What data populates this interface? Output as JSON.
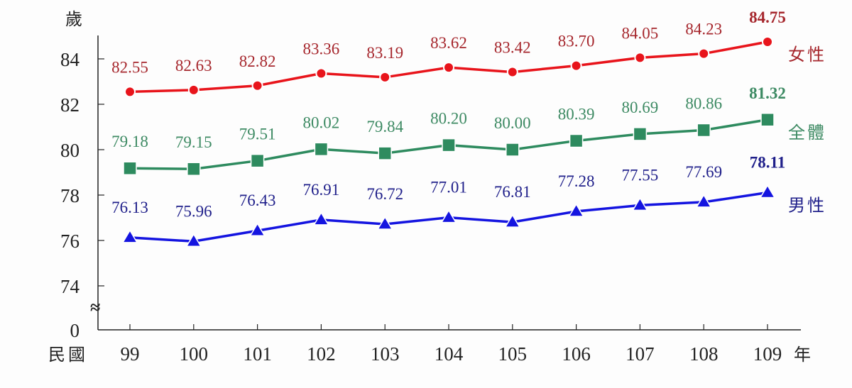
{
  "chart_data": {
    "type": "line",
    "ylabel": "歲",
    "xlabel_prefix": "民國",
    "xlabel_suffix": "年",
    "categories": [
      "99",
      "100",
      "101",
      "102",
      "103",
      "104",
      "105",
      "106",
      "107",
      "108",
      "109"
    ],
    "y_ticks": [
      "84",
      "82",
      "80",
      "78",
      "76",
      "74",
      "0"
    ],
    "ylim": [
      73,
      85
    ],
    "axis_break": true,
    "grid": false,
    "legend_placement": "right, at line ends",
    "series": [
      {
        "name": "女性",
        "color": "#e8141b",
        "label_color": "#a6272d",
        "marker": "circle",
        "values": [
          82.55,
          82.63,
          82.82,
          83.36,
          83.19,
          83.62,
          83.42,
          83.7,
          84.05,
          84.23,
          84.75
        ]
      },
      {
        "name": "全體",
        "color": "#2e8b5f",
        "label_color": "#3d8a63",
        "marker": "square",
        "values": [
          79.18,
          79.15,
          79.51,
          80.02,
          79.84,
          80.2,
          80.0,
          80.39,
          80.69,
          80.86,
          81.32
        ]
      },
      {
        "name": "男性",
        "color": "#1414e0",
        "label_color": "#1f1f8a",
        "marker": "triangle",
        "values": [
          76.13,
          75.96,
          76.43,
          76.91,
          76.72,
          77.01,
          76.81,
          77.28,
          77.55,
          77.69,
          78.11
        ]
      }
    ]
  }
}
